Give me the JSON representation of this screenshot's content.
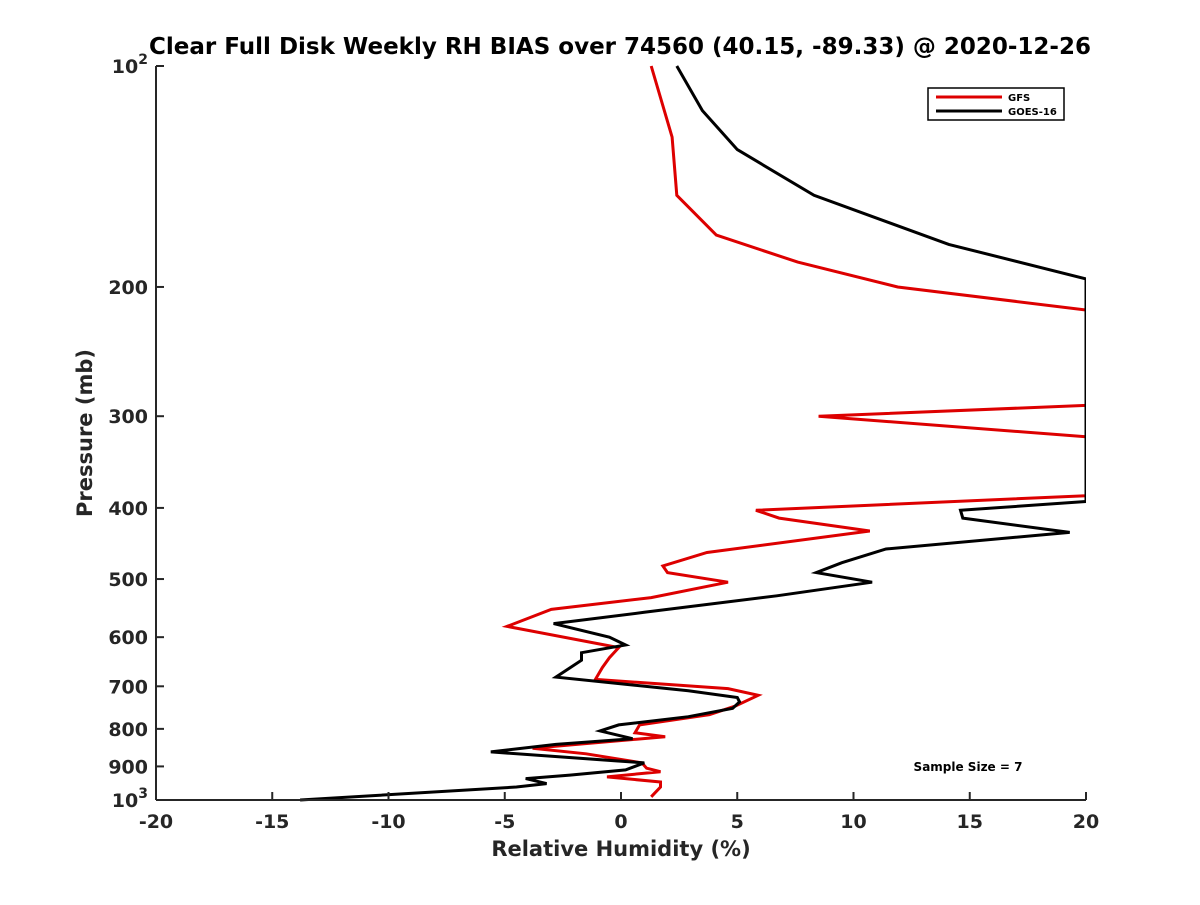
{
  "chart_data": {
    "type": "line",
    "title": "Clear Full Disk Weekly RH BIAS over 74560 (40.15, -89.33) @ 2020-12-26",
    "xlabel": "Relative Humidity (%)",
    "ylabel": "Pressure (mb)",
    "xlim": [
      -20,
      20
    ],
    "ylim": [
      100,
      1000
    ],
    "yscale": "log",
    "yreversed": true,
    "grid": false,
    "legend_position": "top-right",
    "x_ticks": [
      -20,
      -15,
      -10,
      -5,
      0,
      5,
      10,
      15,
      20
    ],
    "y_ticks": [
      {
        "value": 100,
        "base": "10",
        "exp": "2"
      },
      {
        "value": 200,
        "label": "200"
      },
      {
        "value": 300,
        "label": "300"
      },
      {
        "value": 400,
        "label": "400"
      },
      {
        "value": 500,
        "label": "500"
      },
      {
        "value": 600,
        "label": "600"
      },
      {
        "value": 700,
        "label": "700"
      },
      {
        "value": 800,
        "label": "800"
      },
      {
        "value": 900,
        "label": "900"
      },
      {
        "value": 1000,
        "base": "10",
        "exp": "3"
      }
    ],
    "annotation": "Sample Size = 7",
    "series": [
      {
        "name": "GFS",
        "color": "#dd0000",
        "points": [
          [
            1.3,
            100
          ],
          [
            2.2,
            125
          ],
          [
            2.4,
            150
          ],
          [
            4.1,
            170
          ],
          [
            7.6,
            185
          ],
          [
            11.9,
            200
          ],
          [
            20,
            215
          ],
          [
            20,
            290
          ],
          [
            8.5,
            300
          ],
          [
            20,
            320
          ],
          [
            20,
            385
          ],
          [
            5.8,
            403
          ],
          [
            6.8,
            413
          ],
          [
            10.7,
            430
          ],
          [
            3.7,
            460
          ],
          [
            1.8,
            480
          ],
          [
            2.0,
            490
          ],
          [
            4.6,
            505
          ],
          [
            1.3,
            530
          ],
          [
            -3.0,
            550
          ],
          [
            -4.9,
            580
          ],
          [
            -0.1,
            620
          ],
          [
            -0.5,
            640
          ],
          [
            -0.8,
            660
          ],
          [
            -1.1,
            685
          ],
          [
            4.6,
            705
          ],
          [
            5.9,
            720
          ],
          [
            4.9,
            745
          ],
          [
            3.8,
            765
          ],
          [
            0.8,
            790
          ],
          [
            0.6,
            810
          ],
          [
            1.9,
            820
          ],
          [
            -1.9,
            840
          ],
          [
            -3.8,
            850
          ],
          [
            -1.5,
            865
          ],
          [
            0.9,
            890
          ],
          [
            1.1,
            905
          ],
          [
            1.7,
            915
          ],
          [
            -0.6,
            930
          ],
          [
            1.7,
            945
          ],
          [
            1.7,
            960
          ],
          [
            1.3,
            990
          ]
        ]
      },
      {
        "name": "GOES-16",
        "color": "#000000",
        "points": [
          [
            2.4,
            100
          ],
          [
            3.5,
            115
          ],
          [
            5.0,
            130
          ],
          [
            8.3,
            150
          ],
          [
            14.1,
            175
          ],
          [
            20,
            195
          ],
          [
            20,
            392
          ],
          [
            14.6,
            403
          ],
          [
            14.7,
            413
          ],
          [
            19.3,
            432
          ],
          [
            11.4,
            455
          ],
          [
            9.5,
            475
          ],
          [
            8.4,
            490
          ],
          [
            10.8,
            505
          ],
          [
            6.7,
            527
          ],
          [
            1.0,
            555
          ],
          [
            -2.9,
            575
          ],
          [
            -0.5,
            600
          ],
          [
            0.2,
            615
          ],
          [
            -1.7,
            630
          ],
          [
            -1.7,
            645
          ],
          [
            -2.8,
            680
          ],
          [
            2.9,
            710
          ],
          [
            5.0,
            725
          ],
          [
            5.1,
            735
          ],
          [
            4.8,
            750
          ],
          [
            2.9,
            770
          ],
          [
            -0.1,
            790
          ],
          [
            -0.9,
            805
          ],
          [
            0.5,
            825
          ],
          [
            -2.8,
            840
          ],
          [
            -5.6,
            860
          ],
          [
            1.0,
            890
          ],
          [
            0.2,
            910
          ],
          [
            -2.2,
            925
          ],
          [
            -4.1,
            935
          ],
          [
            -3.2,
            950
          ],
          [
            -4.5,
            960
          ],
          [
            -13.8,
            1000
          ]
        ]
      }
    ]
  }
}
